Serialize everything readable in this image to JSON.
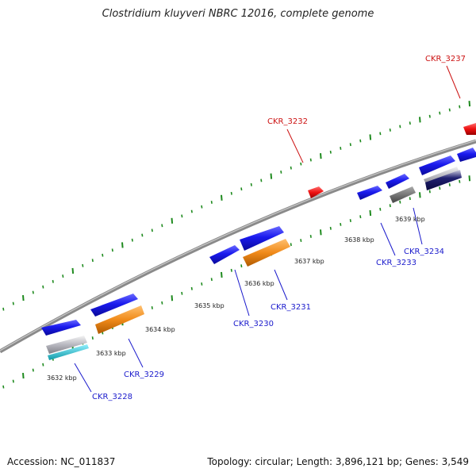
{
  "title": "Clostridium kluyveri NBRC 12016, complete genome",
  "footer": {
    "accession": "Accession: NC_011837",
    "summary": "Topology: circular; Length: 3,896,121 bp; Genes: 3,549"
  },
  "colors": {
    "forward_gene": "#1a1aee",
    "highlight_gene": "#ee1111",
    "orange_feature": "#f08a1a",
    "gray_feature": "#777777",
    "cyan_feature": "#1ab8c8",
    "tick": "#1e8a1e",
    "backbone": "#7a7a7a",
    "label_blue": "#1a1acc",
    "label_red": "#cc1111"
  },
  "ticks": [
    {
      "label": "3632 kbp"
    },
    {
      "label": "3633 kbp"
    },
    {
      "label": "3634 kbp"
    },
    {
      "label": "3635 kbp"
    },
    {
      "label": "3636 kbp"
    },
    {
      "label": "3637 kbp"
    },
    {
      "label": "3638 kbp"
    },
    {
      "label": "3639 kbp"
    }
  ],
  "genes": [
    {
      "id": "CKR_3228",
      "color": "label_blue"
    },
    {
      "id": "CKR_3229",
      "color": "label_blue"
    },
    {
      "id": "CKR_3230",
      "color": "label_blue"
    },
    {
      "id": "CKR_3231",
      "color": "label_blue"
    },
    {
      "id": "CKR_3232",
      "color": "label_red"
    },
    {
      "id": "CKR_3233",
      "color": "label_blue"
    },
    {
      "id": "CKR_3234",
      "color": "label_blue"
    },
    {
      "id": "CKR_3237",
      "color": "label_red"
    }
  ]
}
